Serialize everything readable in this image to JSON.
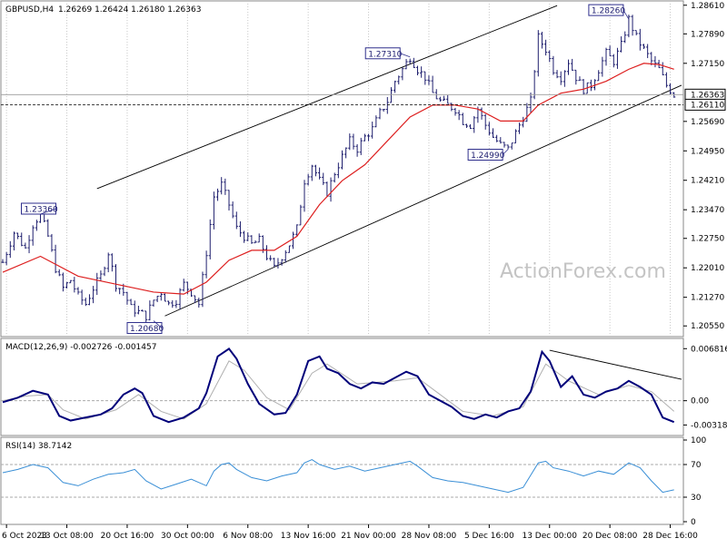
{
  "header": {
    "symbol_text": "GBPUSD,H4",
    "ohlc_text": "1.26269 1.26424 1.26180 1.26363"
  },
  "watermark": "ActionForex.com",
  "colors": {
    "price": "#1f1f6e",
    "ma": "#dd1f1f",
    "macd": "#00007a",
    "signal": "#b0b0b0",
    "rsi": "#3a8fd6",
    "channel": "#000000",
    "grid": "#c8c8c8",
    "label_box": "#2e2e8c"
  },
  "chart_data": [
    {
      "type": "candlestick",
      "panel": "price",
      "title": "GBPUSD,H4 1.26269 1.26424 1.26180 1.26363",
      "y_ticks": [
        "1.28610",
        "1.27890",
        "1.27150",
        "1.26363",
        "1.26110",
        "1.25690",
        "1.24950",
        "1.24210",
        "1.23470",
        "1.22750",
        "1.22010",
        "1.21270",
        "1.20550"
      ],
      "ylim": [
        1.2035,
        1.2865
      ],
      "x_ticks": [
        "6 Oct 2023",
        "13 Oct 08:00",
        "20 Oct 16:00",
        "30 Oct 00:00",
        "6 Nov 08:00",
        "13 Nov 16:00",
        "21 Nov 00:00",
        "28 Nov 08:00",
        "5 Dec 16:00",
        "13 Dec 00:00",
        "20 Dec 08:00",
        "28 Dec 16:00"
      ],
      "current_price": "1.26363",
      "support_level": "1.26110",
      "annotations": [
        "1.23360",
        "1.20680",
        "1.27310",
        "1.24990",
        "1.28260"
      ],
      "close_path": [
        [
          0,
          1.2215
        ],
        [
          3,
          1.229
        ],
        [
          6,
          1.225
        ],
        [
          8,
          1.231
        ],
        [
          10,
          1.2336
        ],
        [
          12,
          1.228
        ],
        [
          14,
          1.22
        ],
        [
          16,
          1.215
        ],
        [
          18,
          1.217
        ],
        [
          20,
          1.213
        ],
        [
          22,
          1.211
        ],
        [
          24,
          1.215
        ],
        [
          26,
          1.218
        ],
        [
          28,
          1.224
        ],
        [
          30,
          1.216
        ],
        [
          32,
          1.214
        ],
        [
          34,
          1.21
        ],
        [
          36,
          1.209
        ],
        [
          38,
          1.208
        ],
        [
          40,
          1.212
        ],
        [
          42,
          1.214
        ],
        [
          44,
          1.211
        ],
        [
          46,
          1.212
        ],
        [
          48,
          1.216
        ],
        [
          50,
          1.214
        ],
        [
          52,
          1.211
        ],
        [
          54,
          1.224
        ],
        [
          56,
          1.238
        ],
        [
          58,
          1.241
        ],
        [
          60,
          1.236
        ],
        [
          62,
          1.23
        ],
        [
          64,
          1.228
        ],
        [
          66,
          1.226
        ],
        [
          68,
          1.227
        ],
        [
          70,
          1.223
        ],
        [
          72,
          1.22
        ],
        [
          74,
          1.223
        ],
        [
          76,
          1.226
        ],
        [
          78,
          1.23
        ],
        [
          80,
          1.242
        ],
        [
          82,
          1.246
        ],
        [
          84,
          1.242
        ],
        [
          86,
          1.239
        ],
        [
          88,
          1.244
        ],
        [
          90,
          1.248
        ],
        [
          92,
          1.252
        ],
        [
          94,
          1.25
        ],
        [
          96,
          1.253
        ],
        [
          98,
          1.255
        ],
        [
          100,
          1.259
        ],
        [
          102,
          1.262
        ],
        [
          104,
          1.267
        ],
        [
          106,
          1.27
        ],
        [
          108,
          1.2731
        ],
        [
          110,
          1.27
        ],
        [
          112,
          1.268
        ],
        [
          114,
          1.264
        ],
        [
          116,
          1.262
        ],
        [
          118,
          1.261
        ],
        [
          120,
          1.26
        ],
        [
          122,
          1.257
        ],
        [
          124,
          1.256
        ],
        [
          126,
          1.26
        ],
        [
          128,
          1.256
        ],
        [
          130,
          1.253
        ],
        [
          132,
          1.251
        ],
        [
          134,
          1.2499
        ],
        [
          136,
          1.254
        ],
        [
          138,
          1.258
        ],
        [
          140,
          1.262
        ],
        [
          142,
          1.278
        ],
        [
          144,
          1.275
        ],
        [
          146,
          1.27
        ],
        [
          148,
          1.268
        ],
        [
          150,
          1.272
        ],
        [
          152,
          1.268
        ],
        [
          154,
          1.265
        ],
        [
          156,
          1.266
        ],
        [
          158,
          1.27
        ],
        [
          160,
          1.274
        ],
        [
          162,
          1.272
        ],
        [
          164,
          1.276
        ],
        [
          166,
          1.2826
        ],
        [
          168,
          1.278
        ],
        [
          170,
          1.275
        ],
        [
          172,
          1.272
        ],
        [
          174,
          1.27
        ],
        [
          176,
          1.266
        ],
        [
          178,
          1.2636
        ]
      ],
      "series": [
        {
          "name": "Price",
          "kind": "bars"
        },
        {
          "name": "MA",
          "kind": "line",
          "values": [
            [
              0,
              1.219
            ],
            [
              10,
              1.223
            ],
            [
              20,
              1.218
            ],
            [
              30,
              1.216
            ],
            [
              40,
              1.214
            ],
            [
              48,
              1.2135
            ],
            [
              54,
              1.2165
            ],
            [
              60,
              1.222
            ],
            [
              66,
              1.2245
            ],
            [
              72,
              1.2245
            ],
            [
              78,
              1.228
            ],
            [
              84,
              1.236
            ],
            [
              90,
              1.242
            ],
            [
              96,
              1.246
            ],
            [
              102,
              1.252
            ],
            [
              108,
              1.258
            ],
            [
              114,
              1.261
            ],
            [
              120,
              1.261
            ],
            [
              126,
              1.26
            ],
            [
              132,
              1.257
            ],
            [
              138,
              1.257
            ],
            [
              142,
              1.261
            ],
            [
              148,
              1.264
            ],
            [
              154,
              1.265
            ],
            [
              160,
              1.267
            ],
            [
              166,
              1.27
            ],
            [
              170,
              1.2715
            ],
            [
              174,
              1.2712
            ],
            [
              178,
              1.27
            ]
          ]
        }
      ],
      "channel": {
        "upper": [
          [
            25,
            1.24
          ],
          [
            147,
            1.286
          ]
        ],
        "lower": [
          [
            43,
            1.208
          ],
          [
            180,
            1.266
          ]
        ]
      }
    },
    {
      "type": "line",
      "panel": "macd",
      "title": "MACD(12,26,9) -0.002726 -0.001457",
      "y_ticks": [
        "0.006816",
        "0.00",
        "-0.003181"
      ],
      "ylim": [
        -0.0042,
        0.0078
      ],
      "series": [
        {
          "name": "MACD",
          "values": [
            [
              0,
              -0.0002
            ],
            [
              4,
              0.0004
            ],
            [
              8,
              0.0013
            ],
            [
              12,
              0.0008
            ],
            [
              15,
              -0.002
            ],
            [
              18,
              -0.0026
            ],
            [
              22,
              -0.0022
            ],
            [
              26,
              -0.0018
            ],
            [
              29,
              -0.001
            ],
            [
              32,
              0.0008
            ],
            [
              35,
              0.0016
            ],
            [
              37,
              0.001
            ],
            [
              40,
              -0.002
            ],
            [
              44,
              -0.0028
            ],
            [
              48,
              -0.0022
            ],
            [
              52,
              -0.001
            ],
            [
              54,
              0.001
            ],
            [
              57,
              0.0058
            ],
            [
              60,
              0.0068
            ],
            [
              62,
              0.0055
            ],
            [
              65,
              0.0022
            ],
            [
              68,
              -0.0004
            ],
            [
              72,
              -0.0018
            ],
            [
              75,
              -0.0016
            ],
            [
              78,
              0.0008
            ],
            [
              81,
              0.0052
            ],
            [
              84,
              0.0058
            ],
            [
              86,
              0.0042
            ],
            [
              89,
              0.0036
            ],
            [
              92,
              0.0022
            ],
            [
              95,
              0.0016
            ],
            [
              98,
              0.0024
            ],
            [
              101,
              0.0022
            ],
            [
              104,
              0.003
            ],
            [
              107,
              0.0038
            ],
            [
              110,
              0.0032
            ],
            [
              113,
              0.0008
            ],
            [
              116,
              0.0
            ],
            [
              119,
              -0.0008
            ],
            [
              122,
              -0.002
            ],
            [
              125,
              -0.0024
            ],
            [
              128,
              -0.0018
            ],
            [
              131,
              -0.0022
            ],
            [
              134,
              -0.0014
            ],
            [
              137,
              -0.001
            ],
            [
              140,
              0.0012
            ],
            [
              143,
              0.0064
            ],
            [
              145,
              0.0052
            ],
            [
              148,
              0.0018
            ],
            [
              151,
              0.0032
            ],
            [
              154,
              0.0008
            ],
            [
              157,
              0.0004
            ],
            [
              160,
              0.0012
            ],
            [
              163,
              0.0016
            ],
            [
              166,
              0.0026
            ],
            [
              169,
              0.0018
            ],
            [
              172,
              0.0008
            ],
            [
              175,
              -0.0022
            ],
            [
              178,
              -0.0028
            ]
          ]
        },
        {
          "name": "Signal",
          "values": [
            [
              0,
              0.0
            ],
            [
              6,
              0.0006
            ],
            [
              12,
              0.0008
            ],
            [
              16,
              -0.0012
            ],
            [
              22,
              -0.0024
            ],
            [
              30,
              -0.0012
            ],
            [
              36,
              0.0008
            ],
            [
              42,
              -0.0014
            ],
            [
              48,
              -0.0024
            ],
            [
              54,
              -0.0004
            ],
            [
              60,
              0.0052
            ],
            [
              64,
              0.004
            ],
            [
              70,
              0.0004
            ],
            [
              76,
              -0.0012
            ],
            [
              82,
              0.0036
            ],
            [
              86,
              0.0048
            ],
            [
              94,
              0.0022
            ],
            [
              104,
              0.0026
            ],
            [
              110,
              0.003
            ],
            [
              116,
              0.0008
            ],
            [
              122,
              -0.0014
            ],
            [
              130,
              -0.002
            ],
            [
              138,
              -0.0008
            ],
            [
              144,
              0.0048
            ],
            [
              150,
              0.0026
            ],
            [
              158,
              0.0008
            ],
            [
              166,
              0.002
            ],
            [
              172,
              0.0012
            ],
            [
              178,
              -0.0014
            ]
          ]
        }
      ],
      "trendline": [
        [
          145,
          0.0066
        ],
        [
          180,
          0.0028
        ]
      ]
    },
    {
      "type": "line",
      "panel": "rsi",
      "title": "RSI(14) 38.7142",
      "y_ticks": [
        "100",
        "70",
        "30",
        "0"
      ],
      "ylim": [
        0,
        100
      ],
      "series": [
        {
          "name": "RSI",
          "values": [
            [
              0,
              60
            ],
            [
              4,
              64
            ],
            [
              8,
              70
            ],
            [
              12,
              66
            ],
            [
              16,
              48
            ],
            [
              20,
              44
            ],
            [
              24,
              52
            ],
            [
              28,
              58
            ],
            [
              32,
              60
            ],
            [
              35,
              64
            ],
            [
              38,
              50
            ],
            [
              42,
              40
            ],
            [
              46,
              46
            ],
            [
              50,
              52
            ],
            [
              54,
              44
            ],
            [
              56,
              62
            ],
            [
              58,
              70
            ],
            [
              60,
              72
            ],
            [
              62,
              64
            ],
            [
              66,
              54
            ],
            [
              70,
              50
            ],
            [
              74,
              56
            ],
            [
              78,
              60
            ],
            [
              80,
              72
            ],
            [
              82,
              76
            ],
            [
              84,
              70
            ],
            [
              88,
              64
            ],
            [
              92,
              68
            ],
            [
              96,
              62
            ],
            [
              100,
              66
            ],
            [
              104,
              70
            ],
            [
              108,
              74
            ],
            [
              110,
              68
            ],
            [
              114,
              54
            ],
            [
              118,
              50
            ],
            [
              122,
              48
            ],
            [
              126,
              44
            ],
            [
              130,
              40
            ],
            [
              134,
              36
            ],
            [
              138,
              42
            ],
            [
              142,
              72
            ],
            [
              144,
              74
            ],
            [
              146,
              66
            ],
            [
              150,
              62
            ],
            [
              154,
              56
            ],
            [
              158,
              62
            ],
            [
              162,
              58
            ],
            [
              166,
              72
            ],
            [
              169,
              66
            ],
            [
              172,
              50
            ],
            [
              175,
              36
            ],
            [
              178,
              39
            ]
          ]
        }
      ]
    }
  ]
}
